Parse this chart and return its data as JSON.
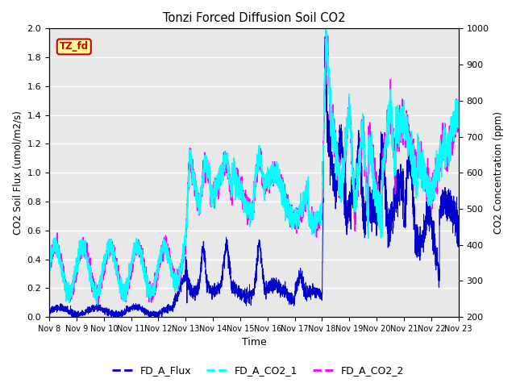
{
  "title": "Tonzi Forced Diffusion Soil CO2",
  "xlabel": "Time",
  "ylabel_left": "CO2 Soil Flux (umol/m2/s)",
  "ylabel_right": "CO2 Concentration (ppm)",
  "ylim_left": [
    0.0,
    2.0
  ],
  "ylim_right": [
    200,
    1000
  ],
  "yticks_left": [
    0.0,
    0.2,
    0.4,
    0.6,
    0.8,
    1.0,
    1.2,
    1.4,
    1.6,
    1.8,
    2.0
  ],
  "yticks_right": [
    200,
    300,
    400,
    500,
    600,
    700,
    800,
    900,
    1000
  ],
  "xtick_labels": [
    "Nov 8",
    "Nov 9",
    "Nov 10",
    "Nov 11",
    "Nov 12",
    "Nov 13",
    "Nov 14",
    "Nov 15",
    "Nov 16",
    "Nov 17",
    "Nov 18",
    "Nov 19",
    "Nov 20",
    "Nov 21",
    "Nov 22",
    "Nov 23"
  ],
  "legend_labels": [
    "FD_A_Flux",
    "FD_A_CO2_1",
    "FD_A_CO2_2"
  ],
  "legend_colors": [
    "#0000CD",
    "#00FFFF",
    "#FF00FF"
  ],
  "flux_lw": 0.7,
  "co2_lw": 1.0,
  "tag_text": "TZ_fd",
  "tag_bg": "#FFFF99",
  "tag_border": "#CC0000",
  "background_color": "#E8E8E8",
  "grid_color": "#FFFFFF"
}
